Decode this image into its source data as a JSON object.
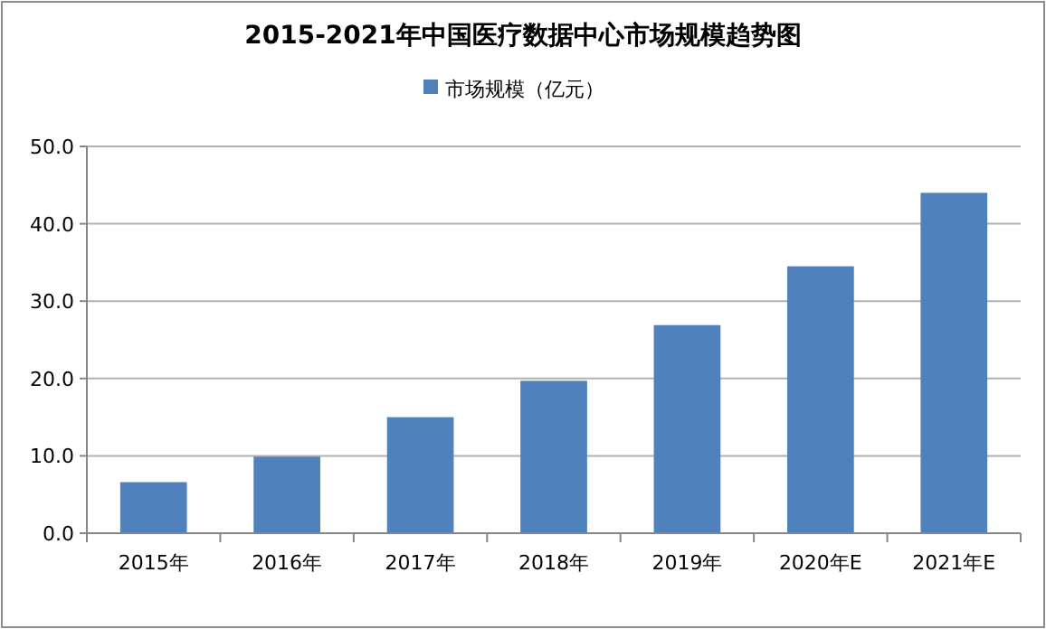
{
  "chart_data": {
    "type": "bar",
    "title": "2015-2021年中国医疗数据中心市场规模趋势图",
    "categories": [
      "2015年",
      "2016年",
      "2017年",
      "2018年",
      "2019年",
      "2020年E",
      "2021年E"
    ],
    "series": [
      {
        "name": "市场规模（亿元）",
        "color": "#4f81bd",
        "values": [
          6.6,
          9.9,
          15.0,
          19.7,
          26.9,
          34.5,
          44.0
        ]
      }
    ],
    "ylim": [
      0,
      50
    ],
    "yticks": [
      {
        "value": 0,
        "label": "0.0"
      },
      {
        "value": 10,
        "label": "10.0"
      },
      {
        "value": 20,
        "label": "20.0"
      },
      {
        "value": 30,
        "label": "30.0"
      },
      {
        "value": 40,
        "label": "40.0"
      },
      {
        "value": 50,
        "label": "50.0"
      }
    ],
    "grid": "y",
    "legend": "top"
  }
}
